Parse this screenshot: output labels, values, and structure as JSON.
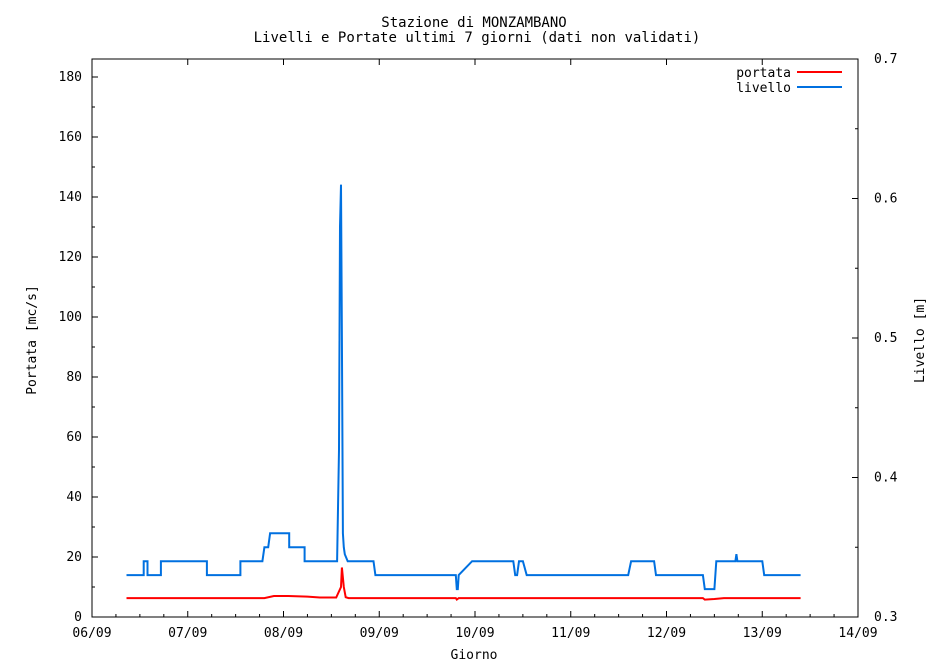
{
  "chart_data": {
    "type": "line",
    "title": "Stazione di MONZAMBANO",
    "subtitle": "Livelli e Portate ultimi 7 giorni (dati non validati)",
    "xlabel": "Giorno",
    "ylabel_left": "Portata [mc/s]",
    "ylabel_right": "Livello [m]",
    "x_ticks": [
      "06/09",
      "07/09",
      "08/09",
      "09/09",
      "10/09",
      "11/09",
      "12/09",
      "13/09",
      "14/09"
    ],
    "xlim": [
      0,
      8
    ],
    "ylim_left": [
      0,
      186
    ],
    "yticks_left": [
      0,
      20,
      40,
      60,
      80,
      100,
      120,
      140,
      160,
      180
    ],
    "ylim_right": [
      0.3,
      0.7
    ],
    "yticks_right": [
      "0.3",
      "0.4",
      "0.5",
      "0.6",
      "0.7"
    ],
    "legend_position": "top-right",
    "grid": false,
    "series": [
      {
        "name": "portata",
        "axis": "left",
        "color": "#ff0000",
        "x": [
          0.36,
          1.8,
          1.9,
          2.05,
          2.25,
          2.38,
          2.55,
          2.6,
          2.61,
          2.63,
          2.65,
          2.68,
          3.0,
          3.8,
          3.81,
          3.83,
          6.38,
          6.4,
          6.5,
          6.6,
          7.4
        ],
        "y": [
          6.3,
          6.3,
          7.0,
          7.0,
          6.8,
          6.5,
          6.5,
          10.0,
          16.5,
          10.0,
          6.6,
          6.3,
          6.3,
          6.3,
          5.8,
          6.3,
          6.3,
          5.8,
          6.0,
          6.3,
          6.3
        ]
      },
      {
        "name": "livello",
        "axis": "right",
        "color": "#0070e0",
        "x": [
          0.36,
          0.54,
          0.54,
          0.58,
          0.58,
          0.72,
          0.72,
          1.2,
          1.2,
          1.55,
          1.55,
          1.78,
          1.8,
          1.84,
          1.86,
          2.06,
          2.06,
          2.22,
          2.22,
          2.56,
          2.58,
          2.59,
          2.6,
          2.61,
          2.62,
          2.63,
          2.64,
          2.67,
          2.68,
          2.7,
          2.94,
          2.96,
          3.8,
          3.81,
          3.82,
          3.83,
          3.97,
          4.4,
          4.42,
          4.44,
          4.46,
          4.5,
          4.54,
          5.6,
          5.63,
          5.87,
          5.89,
          6.38,
          6.4,
          6.5,
          6.52,
          6.72,
          6.73,
          6.74,
          7.0,
          7.02,
          7.4
        ],
        "y": [
          0.33,
          0.33,
          0.34,
          0.34,
          0.33,
          0.33,
          0.34,
          0.34,
          0.33,
          0.33,
          0.34,
          0.34,
          0.35,
          0.35,
          0.36,
          0.36,
          0.35,
          0.35,
          0.34,
          0.34,
          0.42,
          0.58,
          0.61,
          0.5,
          0.36,
          0.35,
          0.345,
          0.34,
          0.34,
          0.34,
          0.34,
          0.33,
          0.33,
          0.32,
          0.32,
          0.33,
          0.34,
          0.34,
          0.33,
          0.33,
          0.34,
          0.34,
          0.33,
          0.33,
          0.34,
          0.34,
          0.33,
          0.33,
          0.32,
          0.32,
          0.34,
          0.34,
          0.345,
          0.34,
          0.34,
          0.33,
          0.33
        ]
      }
    ]
  }
}
